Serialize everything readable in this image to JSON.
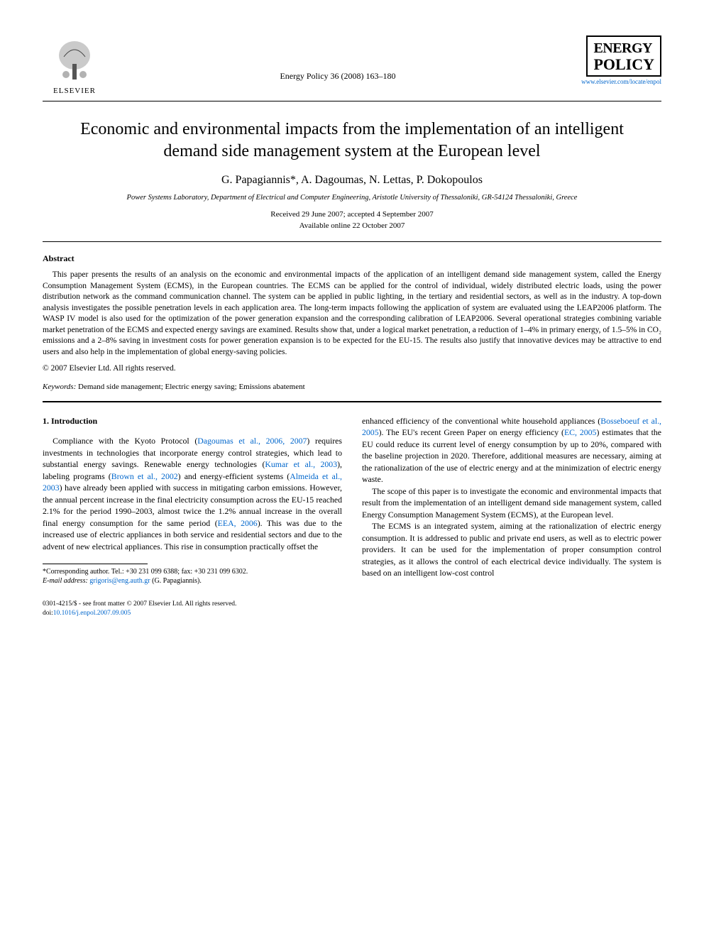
{
  "publisher": {
    "name": "ELSEVIER",
    "tree_color": "#444444"
  },
  "journal": {
    "reference": "Energy Policy 36 (2008) 163–180",
    "logo_line1": "ENERGY",
    "logo_line2": "POLICY",
    "url": "www.elsevier.com/locate/enpol"
  },
  "title": "Economic and environmental impacts from the implementation of an intelligent demand side management system at the European level",
  "authors": "G. Papagiannis*, A. Dagoumas, N. Lettas, P. Dokopoulos",
  "affiliation": "Power Systems Laboratory, Department of Electrical and Computer Engineering, Aristotle University of Thessaloniki, GR-54124 Thessaloniki, Greece",
  "dates": {
    "received_accepted": "Received 29 June 2007; accepted 4 September 2007",
    "online": "Available online 22 October 2007"
  },
  "abstract": {
    "heading": "Abstract",
    "body": "This paper presents the results of an analysis on the economic and environmental impacts of the application of an intelligent demand side management system, called the Energy Consumption Management System (ECMS), in the European countries. The ECMS can be applied for the control of individual, widely distributed electric loads, using the power distribution network as the command communication channel. The system can be applied in public lighting, in the tertiary and residential sectors, as well as in the industry. A top-down analysis investigates the possible penetration levels in each application area. The long-term impacts following the application of system are evaluated using the LEAP2006 platform. The WASP IV model is also used for the optimization of the power generation expansion and the corresponding calibration of LEAP2006. Several operational strategies combining variable market penetration of the ECMS and expected energy savings are examined. Results show that, under a logical market penetration, a reduction of 1–4% in primary energy, of 1.5–5% in CO₂ emissions and a 2–8% saving in investment costs for power generation expansion is to be expected for the EU-15. The results also justify that innovative devices may be attractive to end users and also help in the implementation of global energy-saving policies.",
    "copyright": "© 2007 Elsevier Ltd. All rights reserved."
  },
  "keywords": {
    "label": "Keywords:",
    "text": " Demand side management; Electric energy saving; Emissions abatement"
  },
  "section1": {
    "heading": "1. Introduction",
    "col_left_html": "Compliance with the Kyoto Protocol (<span class='cite'>Dagoumas et al., 2006, 2007</span>) requires investments in technologies that incorporate energy control strategies, which lead to substantial energy savings. Renewable energy technologies (<span class='cite'>Kumar et al., 2003</span>), labeling programs (<span class='cite'>Brown et al., 2002</span>) and energy-efficient systems (<span class='cite'>Almeida et al., 2003</span>) have already been applied with success in mitigating carbon emissions. However, the annual percent increase in the final electricity consumption across the EU-15 reached 2.1% for the period 1990–2003, almost twice the 1.2% annual increase in the overall final energy consumption for the same period (<span class='cite'>EEA, 2006</span>). This was due to the increased use of electric appliances in both service and residential sectors and due to the advent of new electrical appliances. This rise in consumption practically offset the",
    "col_right_p1_html": "enhanced efficiency of the conventional white household appliances (<span class='cite'>Bosseboeuf et al., 2005</span>). The EU's recent Green Paper on energy efficiency (<span class='cite'>EC, 2005</span>) estimates that the EU could reduce its current level of energy consumption by up to 20%, compared with the baseline projection in 2020. Therefore, additional measures are necessary, aiming at the rationalization of the use of electric energy and at the minimization of electric energy waste.",
    "col_right_p2": "The scope of this paper is to investigate the economic and environmental impacts that result from the implementation of an intelligent demand side management system, called Energy Consumption Management System (ECMS), at the European level.",
    "col_right_p3": "The ECMS is an integrated system, aiming at the rationalization of electric energy consumption. It is addressed to public and private end users, as well as to electric power providers. It can be used for the implementation of proper consumption control strategies, as it allows the control of each electrical device individually. The system is based on an intelligent low-cost control"
  },
  "footnote": {
    "corresponding": "*Corresponding author. Tel.: +30 231 099 6388; fax: +30 231 099 6302.",
    "email_label": "E-mail address:",
    "email": "grigoris@eng.auth.gr",
    "email_person": "(G. Papagiannis)."
  },
  "bottom": {
    "issn": "0301-4215/$ - see front matter © 2007 Elsevier Ltd. All rights reserved.",
    "doi_label": "doi:",
    "doi": "10.1016/j.enpol.2007.09.005"
  },
  "colors": {
    "link": "#0066cc",
    "text": "#000000",
    "background": "#ffffff"
  },
  "fonts": {
    "body_family": "Georgia, Times New Roman, serif",
    "title_size_pt": 18,
    "body_size_pt": 9,
    "abstract_size_pt": 8.5
  }
}
